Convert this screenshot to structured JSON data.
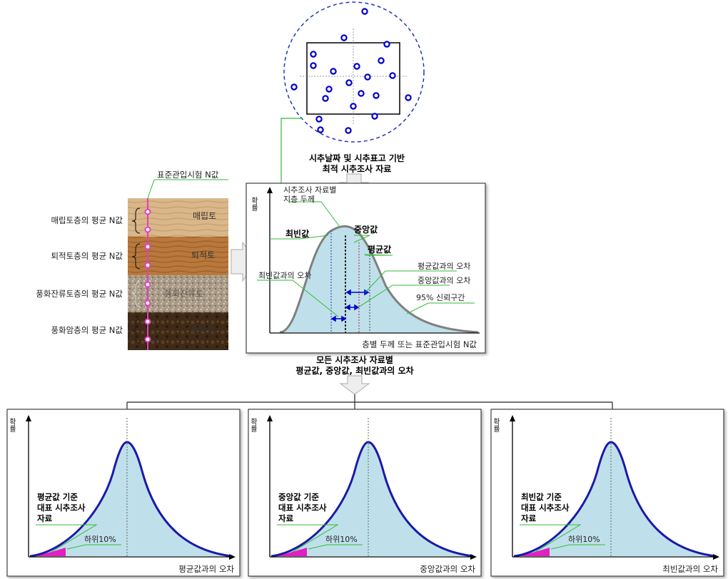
{
  "top": {
    "caption_line1": "시추날짜 및 시추표고 기반",
    "caption_line2": "최적 시추조사 자료"
  },
  "column": {
    "spt_label": "표준관입시험 N값",
    "layers": [
      {
        "name": "매립토",
        "side_label": "매립토층의 평균 N값"
      },
      {
        "name": "퇴적토",
        "side_label": "퇴적토층의 평균 N값"
      },
      {
        "name": "풍화잔류토",
        "side_label": "풍화잔류토층의 평균 N값"
      },
      {
        "name": "풍화암",
        "side_label": "풍화암층의 평균 N값"
      }
    ]
  },
  "main_chart": {
    "y_label": "확률",
    "x_label": "층별 두께 또는 표준관입시험 N값",
    "thickness_line1": "시추조사 자료별",
    "thickness_line2": "지층 두께",
    "mode": "최빈값",
    "median": "중앙값",
    "mean": "평균값",
    "err_mean": "평균값과의 오차",
    "err_median": "중앙값과의 오차",
    "err_mode": "최빈값과의 오차",
    "ci": "95% 신뢰구간"
  },
  "middle": {
    "caption_line1": "모든 시추조사 자료별",
    "caption_line2": "평균값, 중앙값, 최빈값과의 오차"
  },
  "bottom_charts": [
    {
      "y_label": "확률",
      "text1": "평균값 기준",
      "text2": "대표 시추조사",
      "text3": "자료",
      "lower": "하위10%",
      "x_label": "평균값과의 오차"
    },
    {
      "y_label": "확률",
      "text1": "중앙값 기준",
      "text2": "대표 시추조사",
      "text3": "자료",
      "lower": "하위10%",
      "x_label": "중앙값과의 오차"
    },
    {
      "y_label": "확률",
      "text1": "최빈값 기준",
      "text2": "대표 시추조사",
      "text3": "자료",
      "lower": "하위10%",
      "x_label": "최빈값과의 오차"
    }
  ],
  "colors": {
    "fill": "#bfe0ea",
    "curve_blue": "#1a1aa8",
    "callout_green": "#33bb33",
    "spt_magenta": "#e040c0",
    "point_blue": "#0000cc"
  }
}
